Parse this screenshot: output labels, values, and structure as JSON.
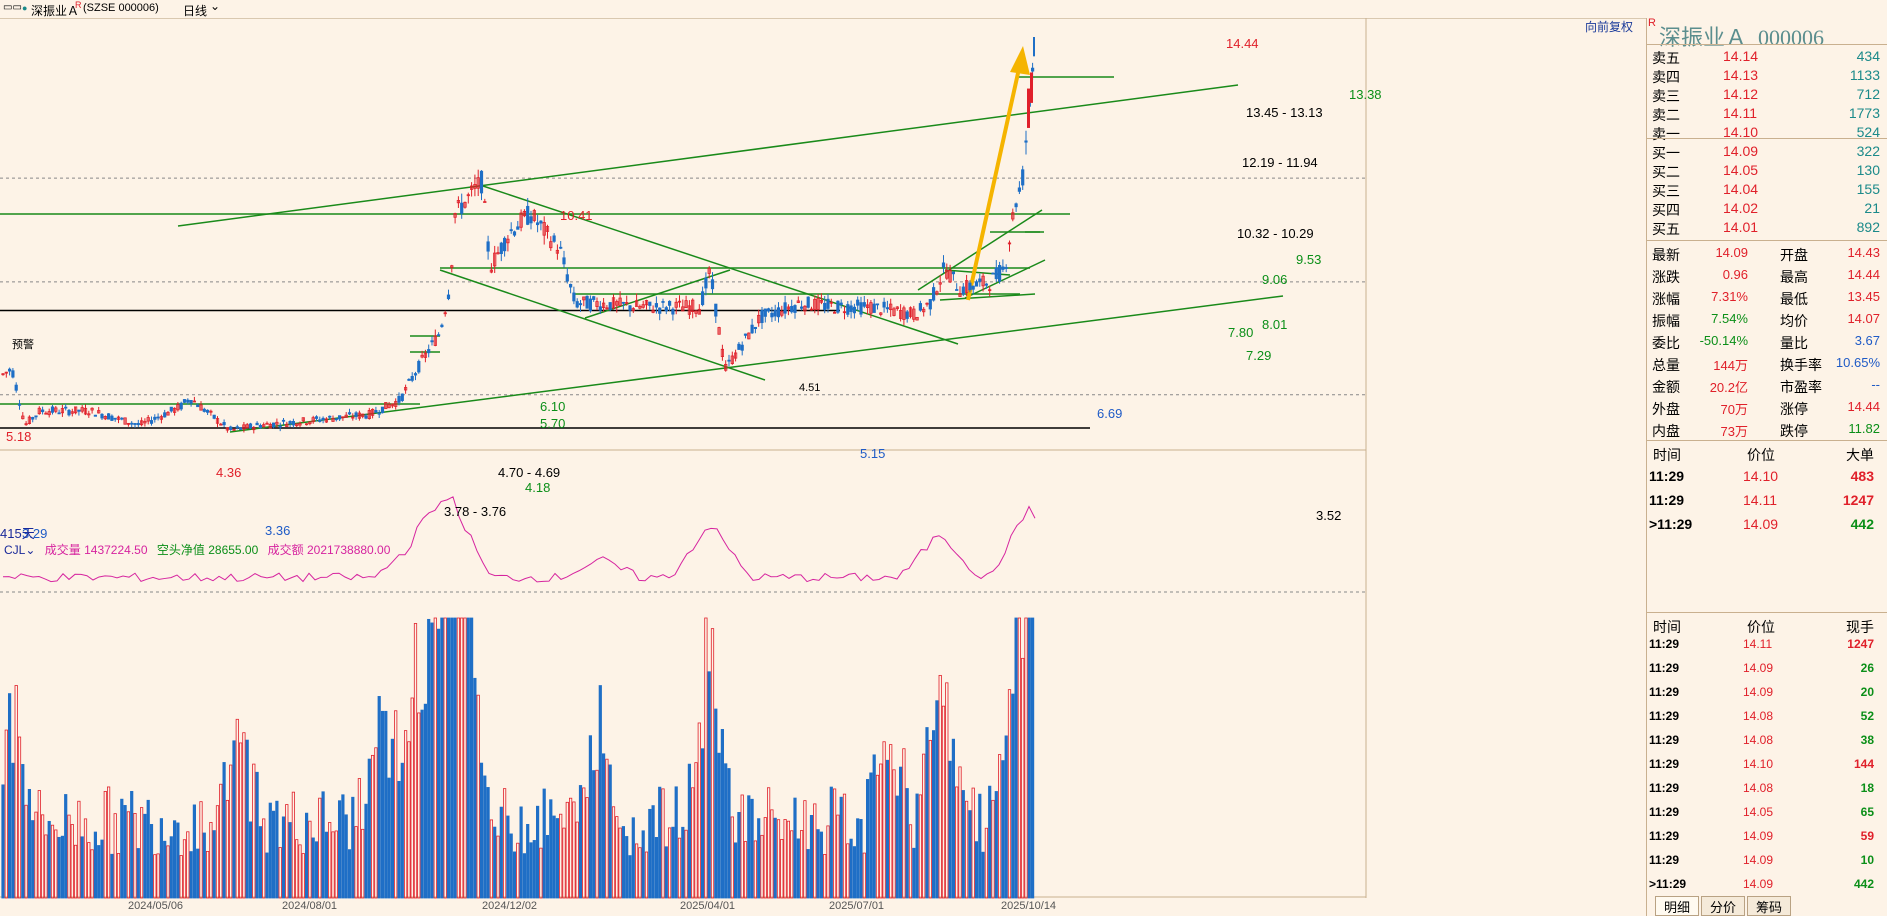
{
  "topbar": {
    "menu_glyph": "▭▭",
    "dot": "●",
    "title": "深振业Ａ",
    "r_badge": "R",
    "code": "(SZSE 000006)",
    "period": "日线",
    "chevron": "⌄"
  },
  "main_chart": {
    "restore_button": "向前复权",
    "price_labels": {
      "high_peak": "14.44",
      "res_13_38": "13.38",
      "gap_1345": "13.45 - 13.13",
      "gap_1219": "12.19 - 11.94",
      "gap_1032": "10.32 - 10.29",
      "res_953": "9.53",
      "res_906": "9.06",
      "res_801": "8.01",
      "res_780": "7.80",
      "res_729": "7.29",
      "peak_1041": "10.41",
      "res_610": "6.10",
      "res_570": "5.70",
      "low_669": "6.69",
      "low_515": "5.15",
      "gap_470": "4.70 - 4.69",
      "res_418": "4.18",
      "gap_378": "3.78 - 3.76",
      "low_336": "3.36",
      "peak_436": "4.36",
      "peak_518": "5.18",
      "low_329": "3.29",
      "line_352": "3.52",
      "alert": "预警",
      "days": "415天",
      "mid_451": "4.51"
    }
  },
  "volume_panel": {
    "indicator": "CJL",
    "vol_label": "成交量",
    "vol_value": "1437224.50",
    "short_label": "空头净值",
    "short_value": "28655.00",
    "amount_label": "成交额",
    "amount_value": "2021738880.00"
  },
  "x_axis": [
    "2024/05/06",
    "2024/08/01",
    "2024/12/02",
    "2025/04/01",
    "2025/07/01",
    "2025/10/14"
  ],
  "quote": {
    "title": "深振业Ａ  000006",
    "r_badge": "R",
    "asks": [
      {
        "label": "卖五",
        "price": "14.14",
        "vol": "434"
      },
      {
        "label": "卖四",
        "price": "14.13",
        "vol": "1133"
      },
      {
        "label": "卖三",
        "price": "14.12",
        "vol": "712"
      },
      {
        "label": "卖二",
        "price": "14.11",
        "vol": "1773"
      },
      {
        "label": "卖一",
        "price": "14.10",
        "vol": "524"
      }
    ],
    "bids": [
      {
        "label": "买一",
        "price": "14.09",
        "vol": "322"
      },
      {
        "label": "买二",
        "price": "14.05",
        "vol": "130"
      },
      {
        "label": "买三",
        "price": "14.04",
        "vol": "155"
      },
      {
        "label": "买四",
        "price": "14.02",
        "vol": "21"
      },
      {
        "label": "买五",
        "price": "14.01",
        "vol": "892"
      }
    ],
    "stats": [
      {
        "l1": "最新",
        "v1": "14.09",
        "l2": "开盘",
        "v2": "14.43"
      },
      {
        "l1": "涨跌",
        "v1": "0.96",
        "l2": "最高",
        "v2": "14.44"
      },
      {
        "l1": "涨幅",
        "v1": "7.31%",
        "l2": "最低",
        "v2": "13.45"
      },
      {
        "l1": "振幅",
        "v1": "7.54%",
        "l2": "均价",
        "v2": "14.07"
      },
      {
        "l1": "委比",
        "v1": "-50.14%",
        "l2": "量比",
        "v2": "3.67"
      },
      {
        "l1": "总量",
        "v1": "144万",
        "l2": "换手率",
        "v2": "10.65%"
      },
      {
        "l1": "金额",
        "v1": "20.2亿",
        "l2": "市盈率",
        "v2": "--"
      },
      {
        "l1": "外盘",
        "v1": "70万",
        "l2": "涨停",
        "v2": "14.44"
      },
      {
        "l1": "内盘",
        "v1": "73万",
        "l2": "跌停",
        "v2": "11.82"
      }
    ],
    "big_header": {
      "time": "时间",
      "price": "价位",
      "vol": "大单"
    },
    "big_orders": [
      {
        "time": "11:29",
        "price": "14.10",
        "vol": "483"
      },
      {
        "time": "11:29",
        "price": "14.11",
        "vol": "1247"
      },
      {
        "time": "11:29",
        "price": "14.09",
        "vol": "442"
      }
    ],
    "tick_header": {
      "time": "时间",
      "price": "价位",
      "vol": "现手"
    },
    "ticks": [
      {
        "time": "11:29",
        "price": "14.11",
        "vol": "1247"
      },
      {
        "time": "11:29",
        "price": "14.09",
        "vol": "26"
      },
      {
        "time": "11:29",
        "price": "14.09",
        "vol": "20"
      },
      {
        "time": "11:29",
        "price": "14.08",
        "vol": "52"
      },
      {
        "time": "11:29",
        "price": "14.08",
        "vol": "38"
      },
      {
        "time": "11:29",
        "price": "14.10",
        "vol": "144"
      },
      {
        "time": "11:29",
        "price": "14.08",
        "vol": "18"
      },
      {
        "time": "11:29",
        "price": "14.05",
        "vol": "65"
      },
      {
        "time": "11:29",
        "price": "14.09",
        "vol": "59"
      },
      {
        "time": "11:29",
        "price": "14.09",
        "vol": "10"
      },
      {
        "time": "11:29",
        "price": "14.09",
        "vol": "442"
      }
    ],
    "tabs": [
      "明细",
      "分价",
      "筹码"
    ]
  },
  "colors": {
    "background": "#fdf3e7",
    "up": "#e0202a",
    "down": "#1f6fc6",
    "trendline": "#1a8a1a",
    "arrow": "#f5b400",
    "volume_ma": "#d6249f"
  }
}
